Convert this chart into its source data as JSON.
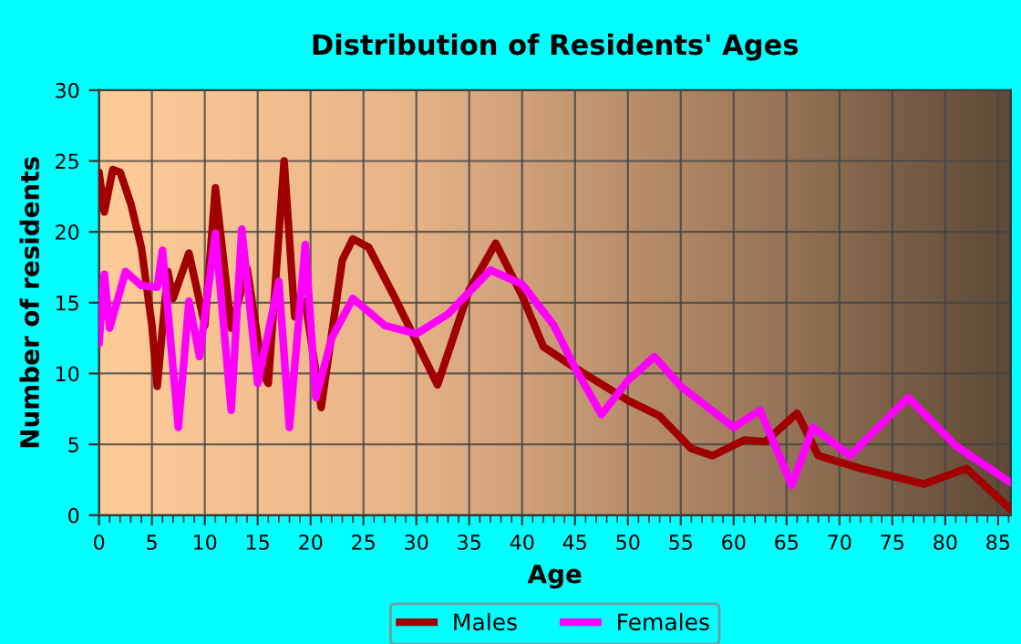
{
  "chart_data": {
    "type": "line",
    "title": "Distribution of Residents' Ages",
    "xlabel": "Age",
    "ylabel": "Number of residents",
    "xlim": [
      0,
      86.2
    ],
    "xticks": [
      0,
      5,
      10,
      15,
      20,
      25,
      30,
      35,
      40,
      45,
      50,
      55,
      60,
      65,
      70,
      75,
      80,
      85
    ],
    "ylim": [
      0,
      30
    ],
    "yticks": [
      0,
      5,
      10,
      15,
      20,
      25,
      30
    ],
    "grid": true,
    "legend": "bottom",
    "line_style": "solid",
    "marker": "none",
    "series": [
      {
        "name": "Males",
        "color": "#a00000",
        "x": [
          0,
          0.5,
          1.3,
          2,
          3,
          4,
          5,
          5.5,
          6.5,
          7,
          8.5,
          10,
          11,
          12.5,
          14,
          15.5,
          16,
          17.5,
          18.5,
          19.5,
          21,
          23,
          24,
          25.5,
          28,
          32,
          35,
          37.5,
          40,
          42,
          45,
          50,
          53,
          56,
          58,
          61,
          63,
          66,
          68,
          72,
          78,
          82,
          86.2
        ],
        "values": [
          24.2,
          21.4,
          24.4,
          24.2,
          22,
          18.9,
          13.4,
          9.1,
          17.2,
          15.3,
          18.5,
          13.4,
          23.1,
          13.2,
          17.4,
          10,
          9.3,
          25,
          14,
          15.1,
          7.6,
          18,
          19.5,
          18.9,
          15.3,
          9.2,
          15.9,
          19.2,
          15.5,
          11.9,
          10.4,
          8.1,
          7,
          4.7,
          4.2,
          5.3,
          5.2,
          7.2,
          4.2,
          3.3,
          2.2,
          3.3,
          0.4
        ]
      },
      {
        "name": "Females",
        "color": "#ff00ff",
        "x": [
          0,
          0.5,
          1,
          2.5,
          4,
          5.5,
          6,
          7.5,
          8.5,
          9.5,
          11,
          12.5,
          13.5,
          15,
          17,
          18,
          19.5,
          20.5,
          22,
          24,
          27,
          30,
          33,
          37,
          40,
          43,
          45,
          47.5,
          50,
          52.5,
          55,
          60,
          62.5,
          65.5,
          67.5,
          71,
          76.5,
          81,
          86.2
        ],
        "values": [
          12.1,
          17,
          13.2,
          17.2,
          16.2,
          16.1,
          18.7,
          6.2,
          15.1,
          11.2,
          19.9,
          7.4,
          20.2,
          9.3,
          16.5,
          6.2,
          19.1,
          8.3,
          12.5,
          15.3,
          13.4,
          12.8,
          14.2,
          17.3,
          16.3,
          13.4,
          10.4,
          7.1,
          9.5,
          11.2,
          9.1,
          6.2,
          7.4,
          2.1,
          6.2,
          4.2,
          8.3,
          4.9,
          2.3
        ]
      }
    ]
  }
}
